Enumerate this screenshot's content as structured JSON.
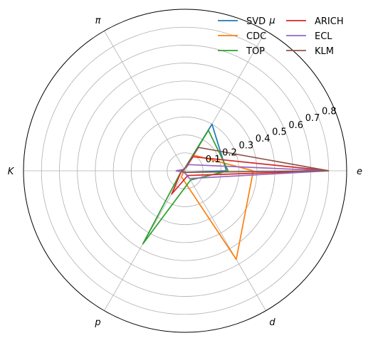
{
  "chart_data": {
    "type": "radar",
    "categories": [
      "e",
      "μ",
      "π",
      "K",
      "p",
      "d"
    ],
    "radial_ticks": [
      "0.1",
      "0.2",
      "0.3",
      "0.4",
      "0.5",
      "0.6",
      "0.7",
      "0.8"
    ],
    "rlim": [
      0,
      0.9
    ],
    "grid": true,
    "legend": {
      "placement": "top-right",
      "columns": 2
    },
    "series": [
      {
        "name": "SVD",
        "color": "#1f77b4",
        "values": [
          0.23,
          0.3,
          0.01,
          0.01,
          0.01,
          0.01
        ]
      },
      {
        "name": "CDC",
        "color": "#ff7f0e",
        "values": [
          0.38,
          0.1,
          0.01,
          0.01,
          0.04,
          0.57
        ]
      },
      {
        "name": "TOP",
        "color": "#2ca02c",
        "values": [
          0.24,
          0.26,
          0.01,
          0.02,
          0.47,
          0.06
        ]
      },
      {
        "name": "ARICH",
        "color": "#d62728",
        "values": [
          0.8,
          0.09,
          0.01,
          0.02,
          0.15,
          0.03
        ]
      },
      {
        "name": "ECL",
        "color": "#9467bd",
        "values": [
          0.8,
          0.04,
          0.01,
          0.05,
          0.01,
          0.05
        ]
      },
      {
        "name": "KLM",
        "color": "#8c564b",
        "values": [
          0.8,
          0.15,
          0.01,
          0.02,
          0.01,
          0.01
        ]
      }
    ]
  }
}
